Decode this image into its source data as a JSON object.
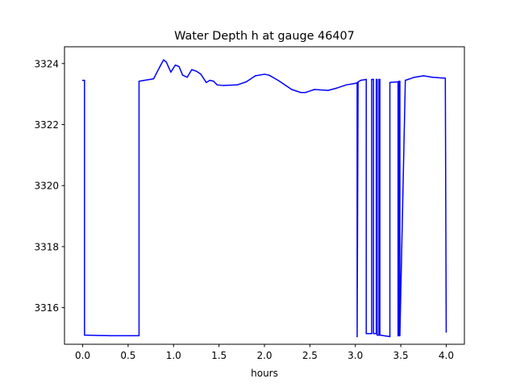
{
  "chart_data": {
    "type": "line",
    "title": "Water Depth h at gauge 46407",
    "xlabel": "hours",
    "ylabel": "",
    "xlim": [
      -0.2,
      4.2
    ],
    "ylim": [
      3314.8,
      3324.55
    ],
    "xticks": [
      0.0,
      0.5,
      1.0,
      1.5,
      2.0,
      2.5,
      3.0,
      3.5,
      4.0
    ],
    "xtick_labels": [
      "0.0",
      "0.5",
      "1.0",
      "1.5",
      "2.0",
      "2.5",
      "3.0",
      "3.5",
      "4.0"
    ],
    "yticks": [
      3316,
      3318,
      3320,
      3322,
      3324
    ],
    "ytick_labels": [
      "3316",
      "3318",
      "3320",
      "3322",
      "3324"
    ],
    "grid": false,
    "series": [
      {
        "color": "#0000ff",
        "x": [
          0.0,
          0.02,
          0.02,
          0.3,
          0.62,
          0.62,
          0.78,
          0.85,
          0.89,
          0.92,
          0.97,
          1.02,
          1.06,
          1.1,
          1.15,
          1.2,
          1.25,
          1.3,
          1.36,
          1.4,
          1.44,
          1.48,
          1.55,
          1.7,
          1.8,
          1.9,
          2.0,
          2.05,
          2.15,
          2.3,
          2.4,
          2.45,
          2.55,
          2.7,
          2.8,
          2.9,
          3.0,
          3.02,
          3.02,
          3.03,
          3.06,
          3.12,
          3.12,
          3.18,
          3.18,
          3.2,
          3.2,
          3.23,
          3.23,
          3.24,
          3.24,
          3.26,
          3.26,
          3.27,
          3.27,
          3.38,
          3.38,
          3.47,
          3.47,
          3.48,
          3.48,
          3.49,
          3.49,
          3.55,
          3.65,
          3.75,
          3.85,
          3.99,
          4.0
        ],
        "y": [
          3323.45,
          3323.45,
          3315.1,
          3315.08,
          3315.08,
          3323.42,
          3323.5,
          3323.9,
          3324.12,
          3324.05,
          3323.72,
          3323.95,
          3323.9,
          3323.62,
          3323.55,
          3323.8,
          3323.75,
          3323.65,
          3323.38,
          3323.45,
          3323.42,
          3323.3,
          3323.28,
          3323.3,
          3323.4,
          3323.6,
          3323.65,
          3323.62,
          3323.45,
          3323.15,
          3323.05,
          3323.05,
          3323.15,
          3323.12,
          3323.2,
          3323.3,
          3323.35,
          3323.37,
          3315.05,
          3323.4,
          3323.45,
          3323.48,
          3315.15,
          3315.15,
          3323.48,
          3323.48,
          3315.15,
          3315.15,
          3323.48,
          3323.48,
          3315.1,
          3315.1,
          3323.48,
          3323.48,
          3315.1,
          3315.05,
          3323.38,
          3323.4,
          3315.08,
          3315.08,
          3323.42,
          3323.42,
          3315.08,
          3323.45,
          3323.55,
          3323.6,
          3323.55,
          3323.52,
          3315.2
        ]
      }
    ]
  }
}
